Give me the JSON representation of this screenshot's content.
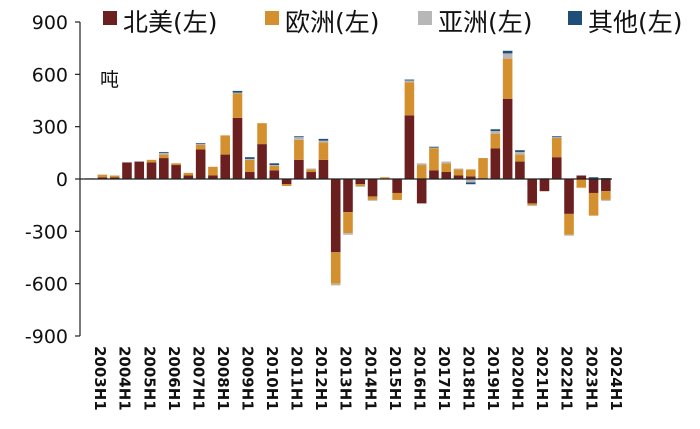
{
  "chart_data": {
    "type": "bar",
    "stacked": true,
    "unit_label": "吨",
    "ylim": [
      -900,
      900
    ],
    "yticks": [
      900,
      600,
      300,
      0,
      -300,
      -600,
      -900
    ],
    "x_tick_labels": [
      "2003H1",
      "2004H1",
      "2005H1",
      "2006H1",
      "2007H1",
      "2008H1",
      "2009H1",
      "2010H1",
      "2011H1",
      "2012H1",
      "2013H1",
      "2014H1",
      "2015H1",
      "2016H1",
      "2017H1",
      "2018H1",
      "2019H1",
      "2020H1",
      "2021H1",
      "2022H1",
      "2023H1",
      "2024H1"
    ],
    "categories": [
      "2003H1",
      "2003H2",
      "2004H1",
      "2004H2",
      "2005H1",
      "2005H2",
      "2006H1",
      "2006H2",
      "2007H1",
      "2007H2",
      "2008H1",
      "2008H2",
      "2009H1",
      "2009H2",
      "2010H1",
      "2010H2",
      "2011H1",
      "2011H2",
      "2012H1",
      "2012H2",
      "2013H1",
      "2013H2",
      "2014H1",
      "2014H2",
      "2015H1",
      "2015H2",
      "2016H1",
      "2016H2",
      "2017H1",
      "2017H2",
      "2018H1",
      "2018H2",
      "2019H1",
      "2019H2",
      "2020H1",
      "2020H2",
      "2021H1",
      "2021H2",
      "2022H1",
      "2022H2",
      "2023H1",
      "2023H2",
      "2024H1"
    ],
    "legend": {
      "position": "top"
    },
    "grid": false,
    "series": [
      {
        "name": "北美(左)",
        "color": "#6b1f1f",
        "values": [
          0,
          10,
          10,
          95,
          100,
          95,
          120,
          80,
          20,
          170,
          20,
          140,
          350,
          40,
          200,
          50,
          -30,
          110,
          40,
          110,
          -420,
          -190,
          -30,
          -100,
          0,
          -80,
          365,
          -140,
          50,
          40,
          20,
          15,
          5,
          175,
          460,
          100,
          -140,
          -70,
          125,
          -200,
          20,
          -80,
          -70
        ]
      },
      {
        "name": "欧洲(左)",
        "color": "#d4902f",
        "values": [
          0,
          15,
          10,
          0,
          0,
          15,
          20,
          10,
          15,
          25,
          50,
          110,
          140,
          70,
          120,
          25,
          -10,
          115,
          15,
          100,
          -180,
          -120,
          -10,
          -20,
          10,
          -40,
          190,
          80,
          125,
          50,
          35,
          40,
          115,
          85,
          230,
          40,
          -10,
          0,
          110,
          -120,
          -50,
          -130,
          -50
        ]
      },
      {
        "name": "亚洲(左)",
        "color": "#b7b7b7",
        "values": [
          5,
          0,
          0,
          0,
          0,
          0,
          10,
          0,
          0,
          5,
          0,
          0,
          5,
          5,
          0,
          5,
          0,
          15,
          5,
          10,
          -10,
          -10,
          -5,
          -5,
          0,
          0,
          10,
          10,
          5,
          10,
          5,
          -20,
          0,
          15,
          30,
          15,
          -5,
          5,
          5,
          -5,
          0,
          0,
          -5
        ]
      },
      {
        "name": "其他(左)",
        "color": "#1f4e79",
        "values": [
          0,
          0,
          0,
          0,
          0,
          0,
          5,
          0,
          0,
          5,
          0,
          0,
          10,
          10,
          0,
          10,
          0,
          5,
          0,
          10,
          0,
          0,
          0,
          0,
          0,
          0,
          5,
          0,
          5,
          0,
          0,
          -10,
          0,
          10,
          15,
          10,
          0,
          0,
          5,
          0,
          0,
          10,
          5
        ]
      }
    ]
  }
}
